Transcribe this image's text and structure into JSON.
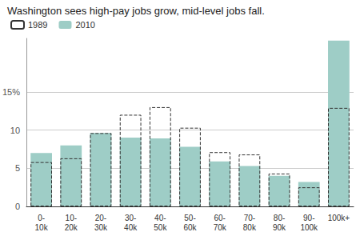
{
  "chart_data": {
    "type": "bar",
    "title": "Washington sees high-pay jobs grow, mid-level jobs fall.",
    "categories": [
      "0-\n10k",
      "10-\n20k",
      "20-\n30k",
      "30-\n40k",
      "40-\n50k",
      "50-\n60k",
      "60-\n70k",
      "70-\n80k",
      "80-\n90k",
      "90-\n100k",
      "100k+"
    ],
    "series": [
      {
        "name": "1989",
        "color": "#333333",
        "line_style": "dashed",
        "values": [
          5.8,
          6.3,
          9.6,
          12.0,
          13.0,
          10.3,
          7.1,
          6.8,
          4.3,
          2.5,
          12.9
        ]
      },
      {
        "name": "2010",
        "color": "#9ecdc6",
        "values": [
          7.0,
          8.0,
          9.6,
          9.0,
          8.9,
          7.8,
          5.9,
          5.3,
          4.0,
          3.2,
          21.7
        ]
      }
    ],
    "ylim": [
      0,
      22
    ],
    "yticks": [
      0,
      5,
      10,
      {
        "value": 15,
        "label": "15%"
      }
    ],
    "grid": true,
    "legend": "top-left"
  }
}
